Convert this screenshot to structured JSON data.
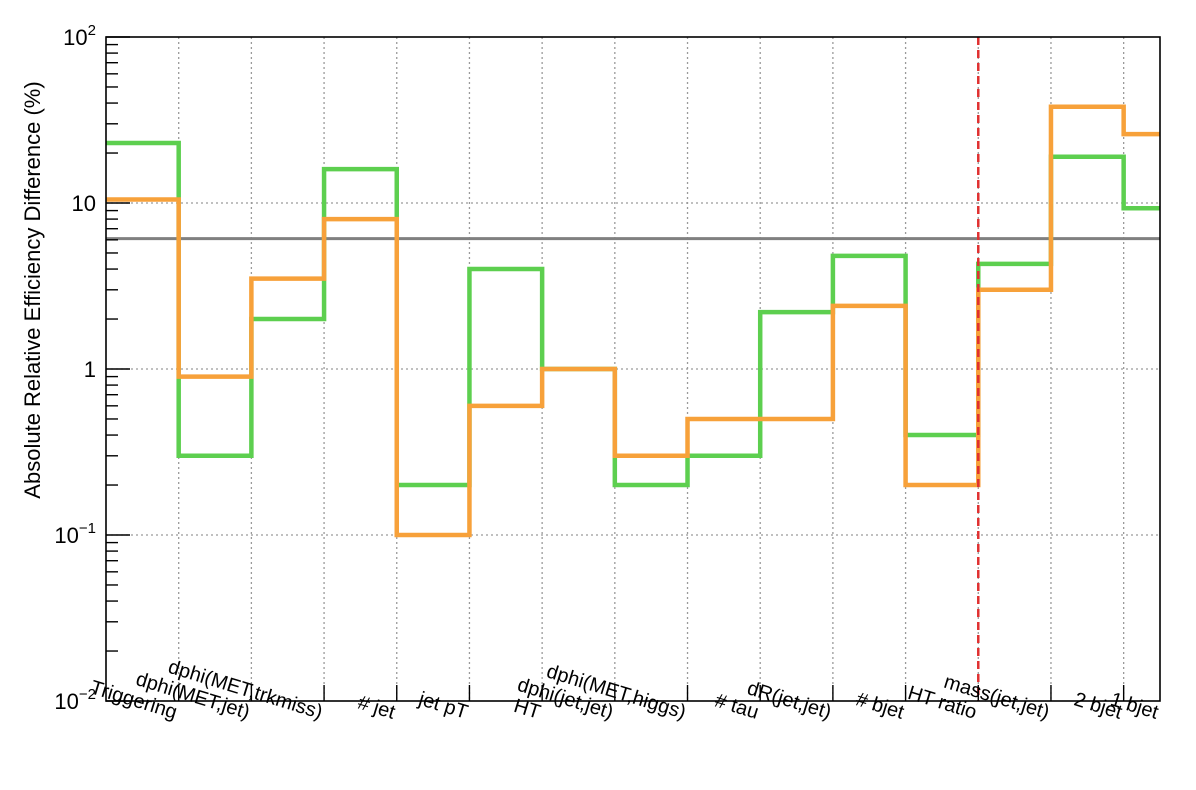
{
  "chart_data": {
    "type": "step",
    "ylabel": "Absolute Relative Efficiency Difference (%)",
    "xlabel": "",
    "yscale": "log",
    "ylim": [
      0.01,
      100
    ],
    "yticks": [
      {
        "value": 0.01,
        "base": "10",
        "exp": "−2"
      },
      {
        "value": 0.1,
        "base": "10",
        "exp": "−1"
      },
      {
        "value": 1,
        "base": "1",
        "exp": ""
      },
      {
        "value": 10,
        "base": "10",
        "exp": ""
      },
      {
        "value": 100,
        "base": "10",
        "exp": "2"
      }
    ],
    "grid": true,
    "categories": [
      "Triggering",
      "dphi(MET,jet)",
      "dphi(MET,trkmiss)",
      "# jet",
      "jet pT",
      "HT",
      "dphi(jet,jet)",
      "dphi(MET,higgs)",
      "# tau",
      "dR(jet,jet)",
      "# bjet",
      "HT ratio",
      "mass(jet,jet)",
      "2 bjet",
      "1 bjet"
    ],
    "series": [
      {
        "color": "#5dcf4f",
        "values": [
          23,
          0.3,
          2.0,
          16,
          0.2,
          4.0,
          1.0,
          0.2,
          0.3,
          2.2,
          4.8,
          0.4,
          4.3,
          19,
          9.3
        ]
      },
      {
        "color": "#f7a13a",
        "values": [
          10.5,
          0.9,
          3.5,
          8.0,
          0.1,
          0.6,
          1.0,
          0.3,
          0.5,
          0.5,
          2.4,
          0.2,
          3.0,
          38,
          26
        ]
      }
    ],
    "reference_line": {
      "value": 6.1,
      "color": "#808080"
    },
    "vertical_divider": {
      "after_category": "HT ratio",
      "color": "#e03030",
      "style": "dashed"
    }
  }
}
